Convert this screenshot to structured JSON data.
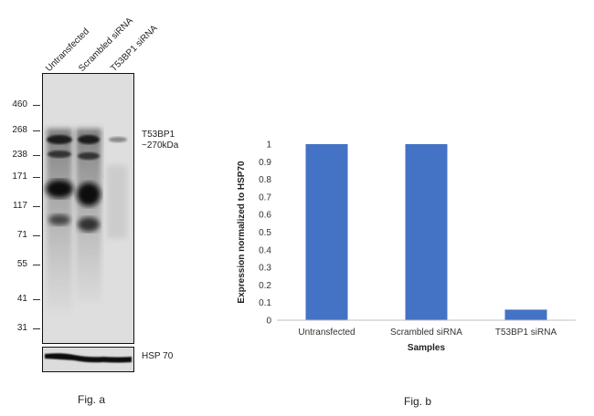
{
  "panel_a": {
    "lane_labels": [
      "Untransfected",
      "Scrambled siRNA",
      "T53BP1 siRNA"
    ],
    "mw_markers": [
      "460",
      "268",
      "238",
      "171",
      "117",
      "71",
      "55",
      "41",
      "31"
    ],
    "band_label_line1": "T53BP1",
    "band_label_line2": "~270kDa",
    "loading_control": "HSP 70",
    "caption": "Fig. a"
  },
  "panel_b": {
    "caption": "Fig. b"
  },
  "chart_data": {
    "type": "bar",
    "categories": [
      "Untransfected",
      "Scrambled siRNA",
      "T53BP1 siRNA"
    ],
    "values": [
      1,
      1,
      0.06
    ],
    "xlabel": "Samples",
    "ylabel": "Expression normalized to HSP70",
    "ylim": [
      0,
      1
    ],
    "yticks": [
      "0",
      "0.1",
      "0.2",
      "0.3",
      "0.4",
      "0.5",
      "0.6",
      "0.7",
      "0.8",
      "0.9",
      "1"
    ],
    "bar_color": "#4472c4",
    "grid": false
  }
}
